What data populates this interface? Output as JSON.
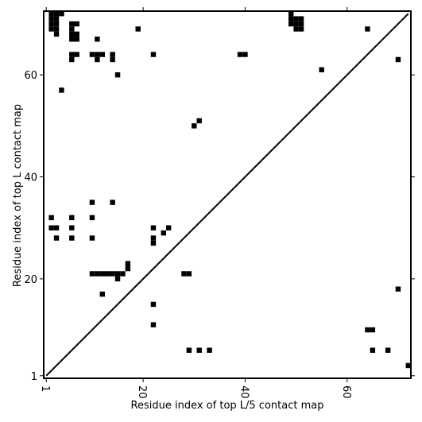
{
  "chart_data": {
    "type": "scatter",
    "title": "",
    "xlabel": "Residue index of top L/5 contact map",
    "ylabel": "Residue index of top L contact map",
    "xlim": [
      0.5,
      72.5
    ],
    "ylim": [
      0.5,
      72.5
    ],
    "xticks": [
      1,
      20,
      40,
      60
    ],
    "yticks": [
      1,
      20,
      40,
      60
    ],
    "xtick_rotation": -90,
    "grid": false,
    "legend": "none",
    "marker": "square",
    "marker_color": "#000000",
    "diagonal": {
      "from": [
        1,
        1
      ],
      "to": [
        72,
        72
      ],
      "color": "#000000"
    },
    "points": [
      [
        2,
        72
      ],
      [
        3,
        72
      ],
      [
        4,
        72
      ],
      [
        2,
        71
      ],
      [
        3,
        71
      ],
      [
        2,
        70
      ],
      [
        3,
        70
      ],
      [
        2,
        69
      ],
      [
        3,
        69
      ],
      [
        3,
        68
      ],
      [
        6,
        70
      ],
      [
        7,
        70
      ],
      [
        6,
        69
      ],
      [
        6,
        68
      ],
      [
        7,
        68
      ],
      [
        6,
        67
      ],
      [
        7,
        67
      ],
      [
        49,
        72
      ],
      [
        49,
        71
      ],
      [
        50,
        71
      ],
      [
        51,
        71
      ],
      [
        49,
        70
      ],
      [
        50,
        70
      ],
      [
        51,
        70
      ],
      [
        50,
        69
      ],
      [
        51,
        69
      ],
      [
        19,
        69
      ],
      [
        64,
        69
      ],
      [
        11,
        67
      ],
      [
        6,
        64
      ],
      [
        7,
        64
      ],
      [
        10,
        64
      ],
      [
        11,
        64
      ],
      [
        12,
        64
      ],
      [
        14,
        64
      ],
      [
        22,
        64
      ],
      [
        39,
        64
      ],
      [
        40,
        64
      ],
      [
        6,
        63
      ],
      [
        11,
        63
      ],
      [
        14,
        63
      ],
      [
        70,
        63
      ],
      [
        55,
        61
      ],
      [
        15,
        60
      ],
      [
        4,
        57
      ],
      [
        31,
        51
      ],
      [
        30,
        50
      ],
      [
        10,
        35
      ],
      [
        14,
        35
      ],
      [
        2,
        32
      ],
      [
        6,
        32
      ],
      [
        10,
        32
      ],
      [
        2,
        30
      ],
      [
        3,
        30
      ],
      [
        6,
        30
      ],
      [
        22,
        30
      ],
      [
        25,
        30
      ],
      [
        24,
        29
      ],
      [
        3,
        28
      ],
      [
        6,
        28
      ],
      [
        10,
        28
      ],
      [
        22,
        28
      ],
      [
        22,
        27
      ],
      [
        17,
        23
      ],
      [
        17,
        22
      ],
      [
        10,
        21
      ],
      [
        11,
        21
      ],
      [
        12,
        21
      ],
      [
        13,
        21
      ],
      [
        14,
        21
      ],
      [
        15,
        21
      ],
      [
        16,
        21
      ],
      [
        28,
        21
      ],
      [
        29,
        21
      ],
      [
        15,
        20
      ],
      [
        70,
        18
      ],
      [
        12,
        17
      ],
      [
        22,
        15
      ],
      [
        22,
        11
      ],
      [
        64,
        10
      ],
      [
        65,
        10
      ],
      [
        29,
        6
      ],
      [
        31,
        6
      ],
      [
        33,
        6
      ],
      [
        65,
        6
      ],
      [
        68,
        6
      ],
      [
        72,
        3
      ]
    ]
  }
}
